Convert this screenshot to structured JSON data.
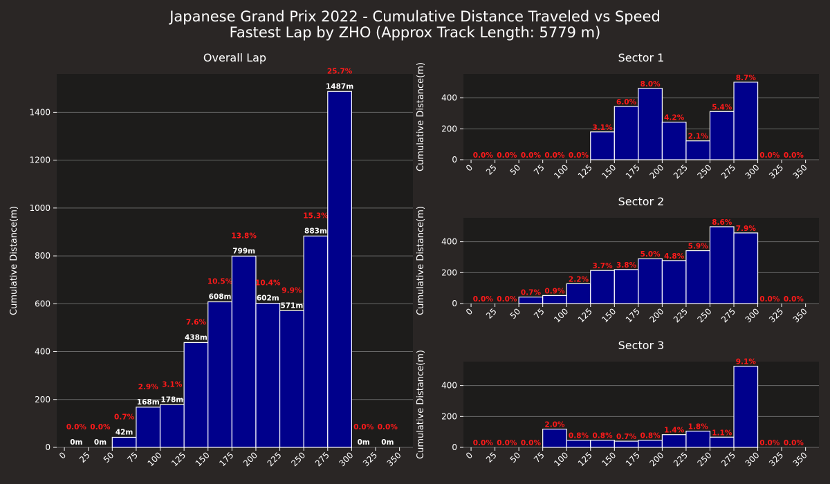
{
  "figure": {
    "title_line1": "Japanese Grand Prix 2022 - Cumulative Distance Traveled vs Speed",
    "title_line2": "Fastest Lap by ZHO (Approx Track Length: 5779 m)"
  },
  "colors": {
    "background": "#2a2625",
    "plot_background": "#1d1c1b",
    "bar": "#00008b",
    "bar_edge": "#ffffff",
    "percent_label": "#ff1a1a",
    "grid": "#6a6a6a"
  },
  "chart_data": [
    {
      "type": "bar",
      "title": "Overall Lap",
      "ylabel": "Cumulative Distance(m)",
      "x_ticks": [
        "0",
        "25",
        "50",
        "75",
        "100",
        "125",
        "150",
        "175",
        "200",
        "225",
        "250",
        "275",
        "300",
        "325",
        "350"
      ],
      "bin_edges": [
        0,
        25,
        50,
        75,
        100,
        125,
        150,
        175,
        200,
        225,
        250,
        275,
        300,
        325,
        350
      ],
      "values": [
        0,
        0,
        42,
        168,
        178,
        438,
        608,
        799,
        602,
        571,
        883,
        1487,
        0,
        0
      ],
      "distance_labels": [
        "0m",
        "0m",
        "42m",
        "168m",
        "178m",
        "438m",
        "608m",
        "799m",
        "602m",
        "571m",
        "883m",
        "1487m",
        "0m",
        "0m"
      ],
      "percent_labels": [
        "0.0%",
        "0.0%",
        "0.7%",
        "2.9%",
        "3.1%",
        "7.6%",
        "10.5%",
        "13.8%",
        "10.4%",
        "9.9%",
        "15.3%",
        "25.7%",
        "0.0%",
        "0.0%"
      ],
      "y_ticks": [
        "0",
        "200",
        "400",
        "600",
        "800",
        "1000",
        "1200",
        "1400"
      ],
      "ylim": [
        0,
        1560
      ],
      "grid": true
    },
    {
      "type": "bar",
      "title": "Sector 1",
      "ylabel": "Cumulative Distance(m)",
      "x_ticks": [
        "0",
        "25",
        "50",
        "75",
        "100",
        "125",
        "150",
        "175",
        "200",
        "225",
        "250",
        "275",
        "300",
        "325",
        "350"
      ],
      "bin_edges": [
        0,
        25,
        50,
        75,
        100,
        125,
        150,
        175,
        200,
        225,
        250,
        275,
        300,
        325,
        350
      ],
      "values": [
        0,
        0,
        0,
        0,
        0,
        180,
        345,
        462,
        243,
        122,
        312,
        502,
        0,
        0
      ],
      "percent_labels": [
        "0.0%",
        "0.0%",
        "0.0%",
        "0.0%",
        "0.0%",
        "3.1%",
        "6.0%",
        "8.0%",
        "4.2%",
        "2.1%",
        "5.4%",
        "8.7%",
        "0.0%",
        "0.0%"
      ],
      "y_ticks": [
        "0",
        "200",
        "400"
      ],
      "ylim": [
        0,
        555
      ],
      "grid": true
    },
    {
      "type": "bar",
      "title": "Sector 2",
      "ylabel": "Cumulative Distance(m)",
      "x_ticks": [
        "0",
        "25",
        "50",
        "75",
        "100",
        "125",
        "150",
        "175",
        "200",
        "225",
        "250",
        "275",
        "300",
        "325",
        "350"
      ],
      "bin_edges": [
        0,
        25,
        50,
        75,
        100,
        125,
        150,
        175,
        200,
        225,
        250,
        275,
        300,
        325,
        350
      ],
      "values": [
        0,
        0,
        42,
        52,
        128,
        214,
        220,
        290,
        278,
        342,
        497,
        457,
        0,
        0
      ],
      "percent_labels": [
        "0.0%",
        "0.0%",
        "0.7%",
        "0.9%",
        "2.2%",
        "3.7%",
        "3.8%",
        "5.0%",
        "4.8%",
        "5.9%",
        "8.6%",
        "7.9%",
        "0.0%",
        "0.0%"
      ],
      "y_ticks": [
        "0",
        "200",
        "400"
      ],
      "ylim": [
        0,
        555
      ],
      "grid": true
    },
    {
      "type": "bar",
      "title": "Sector 3",
      "ylabel": "Cumulative Distance(m)",
      "x_ticks": [
        "0",
        "25",
        "50",
        "75",
        "100",
        "125",
        "150",
        "175",
        "200",
        "225",
        "250",
        "275",
        "300",
        "325",
        "350"
      ],
      "bin_edges": [
        0,
        25,
        50,
        75,
        100,
        125,
        150,
        175,
        200,
        225,
        250,
        275,
        300,
        325,
        350
      ],
      "values": [
        0,
        0,
        0,
        118,
        46,
        46,
        40,
        46,
        82,
        105,
        66,
        525,
        0,
        0
      ],
      "percent_labels": [
        "0.0%",
        "0.0%",
        "0.0%",
        "2.0%",
        "0.8%",
        "0.8%",
        "0.7%",
        "0.8%",
        "1.4%",
        "1.8%",
        "1.1%",
        "9.1%",
        "0.0%",
        "0.0%"
      ],
      "y_ticks": [
        "0",
        "200",
        "400"
      ],
      "ylim": [
        0,
        555
      ],
      "grid": true
    }
  ]
}
